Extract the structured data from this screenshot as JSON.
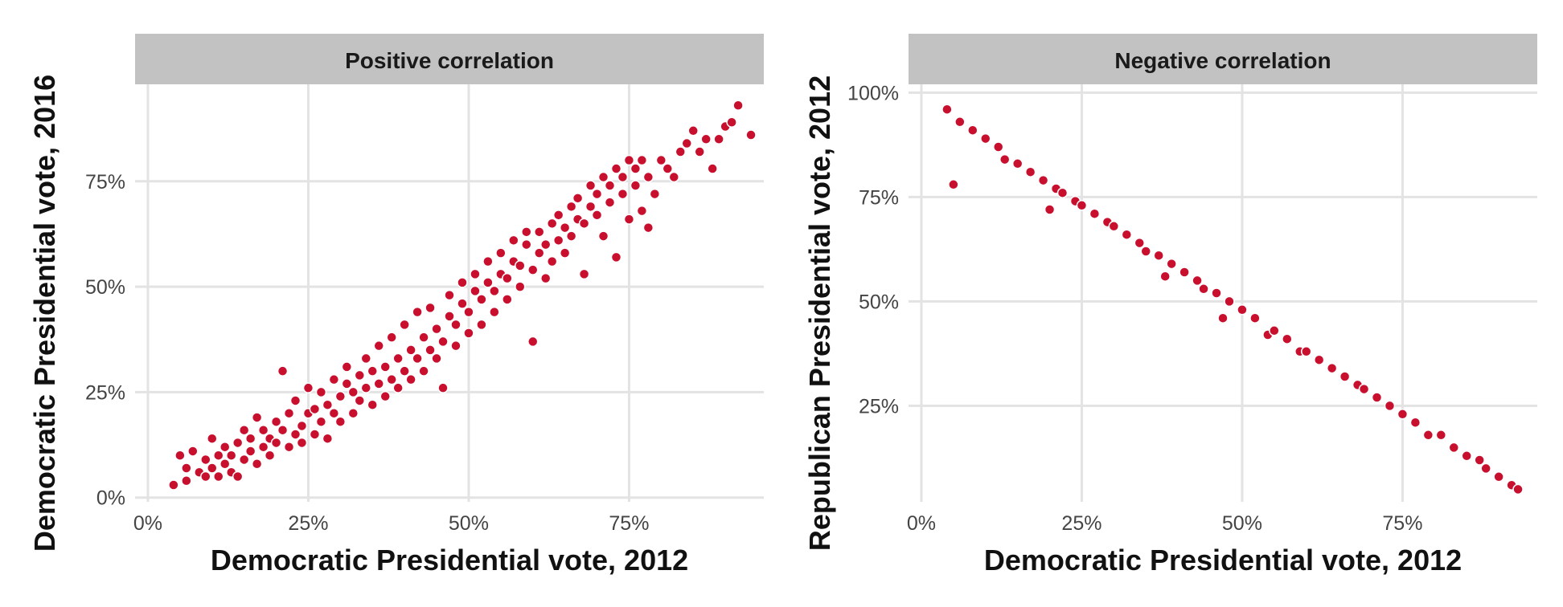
{
  "chart_data": [
    {
      "type": "scatter",
      "title": "Positive correlation",
      "xlabel": "Democratic Presidential vote, 2012",
      "ylabel": "Democratic Presidential vote, 2016",
      "xlim": [
        -0.02,
        0.96
      ],
      "ylim": [
        -0.01,
        0.98
      ],
      "x_ticks": [
        0,
        0.25,
        0.5,
        0.75
      ],
      "x_tick_labels": [
        "0%",
        "25%",
        "50%",
        "75%"
      ],
      "y_ticks": [
        0,
        0.25,
        0.5,
        0.75
      ],
      "y_tick_labels": [
        "0%",
        "25%",
        "50%",
        "75%"
      ],
      "grid": true,
      "point_color": "#c8102e",
      "points": [
        [
          0.04,
          0.03
        ],
        [
          0.05,
          0.1
        ],
        [
          0.06,
          0.04
        ],
        [
          0.06,
          0.07
        ],
        [
          0.07,
          0.11
        ],
        [
          0.08,
          0.06
        ],
        [
          0.09,
          0.05
        ],
        [
          0.09,
          0.09
        ],
        [
          0.1,
          0.07
        ],
        [
          0.1,
          0.14
        ],
        [
          0.11,
          0.05
        ],
        [
          0.11,
          0.1
        ],
        [
          0.12,
          0.08
        ],
        [
          0.12,
          0.12
        ],
        [
          0.13,
          0.06
        ],
        [
          0.13,
          0.1
        ],
        [
          0.14,
          0.13
        ],
        [
          0.14,
          0.05
        ],
        [
          0.15,
          0.09
        ],
        [
          0.15,
          0.16
        ],
        [
          0.16,
          0.11
        ],
        [
          0.16,
          0.14
        ],
        [
          0.17,
          0.08
        ],
        [
          0.17,
          0.19
        ],
        [
          0.18,
          0.12
        ],
        [
          0.18,
          0.16
        ],
        [
          0.19,
          0.1
        ],
        [
          0.19,
          0.14
        ],
        [
          0.2,
          0.18
        ],
        [
          0.2,
          0.13
        ],
        [
          0.21,
          0.3
        ],
        [
          0.21,
          0.16
        ],
        [
          0.22,
          0.12
        ],
        [
          0.22,
          0.2
        ],
        [
          0.23,
          0.15
        ],
        [
          0.23,
          0.23
        ],
        [
          0.24,
          0.17
        ],
        [
          0.24,
          0.13
        ],
        [
          0.25,
          0.2
        ],
        [
          0.25,
          0.26
        ],
        [
          0.26,
          0.15
        ],
        [
          0.26,
          0.21
        ],
        [
          0.27,
          0.18
        ],
        [
          0.27,
          0.25
        ],
        [
          0.28,
          0.22
        ],
        [
          0.28,
          0.14
        ],
        [
          0.29,
          0.2
        ],
        [
          0.29,
          0.28
        ],
        [
          0.3,
          0.24
        ],
        [
          0.3,
          0.18
        ],
        [
          0.31,
          0.27
        ],
        [
          0.31,
          0.31
        ],
        [
          0.32,
          0.2
        ],
        [
          0.32,
          0.25
        ],
        [
          0.33,
          0.29
        ],
        [
          0.33,
          0.23
        ],
        [
          0.34,
          0.33
        ],
        [
          0.34,
          0.26
        ],
        [
          0.35,
          0.22
        ],
        [
          0.35,
          0.3
        ],
        [
          0.36,
          0.27
        ],
        [
          0.36,
          0.36
        ],
        [
          0.37,
          0.24
        ],
        [
          0.37,
          0.31
        ],
        [
          0.38,
          0.28
        ],
        [
          0.38,
          0.38
        ],
        [
          0.39,
          0.33
        ],
        [
          0.39,
          0.26
        ],
        [
          0.4,
          0.3
        ],
        [
          0.4,
          0.41
        ],
        [
          0.41,
          0.35
        ],
        [
          0.41,
          0.28
        ],
        [
          0.42,
          0.33
        ],
        [
          0.42,
          0.44
        ],
        [
          0.43,
          0.38
        ],
        [
          0.43,
          0.3
        ],
        [
          0.44,
          0.35
        ],
        [
          0.44,
          0.45
        ],
        [
          0.45,
          0.4
        ],
        [
          0.45,
          0.33
        ],
        [
          0.46,
          0.26
        ],
        [
          0.46,
          0.37
        ],
        [
          0.47,
          0.43
        ],
        [
          0.47,
          0.48
        ],
        [
          0.48,
          0.36
        ],
        [
          0.48,
          0.41
        ],
        [
          0.49,
          0.46
        ],
        [
          0.49,
          0.51
        ],
        [
          0.5,
          0.39
        ],
        [
          0.5,
          0.44
        ],
        [
          0.51,
          0.49
        ],
        [
          0.51,
          0.53
        ],
        [
          0.52,
          0.41
        ],
        [
          0.52,
          0.47
        ],
        [
          0.53,
          0.51
        ],
        [
          0.53,
          0.56
        ],
        [
          0.54,
          0.44
        ],
        [
          0.54,
          0.49
        ],
        [
          0.55,
          0.53
        ],
        [
          0.55,
          0.58
        ],
        [
          0.56,
          0.47
        ],
        [
          0.56,
          0.52
        ],
        [
          0.57,
          0.56
        ],
        [
          0.57,
          0.61
        ],
        [
          0.58,
          0.5
        ],
        [
          0.58,
          0.55
        ],
        [
          0.59,
          0.6
        ],
        [
          0.59,
          0.63
        ],
        [
          0.6,
          0.37
        ],
        [
          0.6,
          0.54
        ],
        [
          0.61,
          0.58
        ],
        [
          0.61,
          0.63
        ],
        [
          0.62,
          0.52
        ],
        [
          0.62,
          0.6
        ],
        [
          0.63,
          0.65
        ],
        [
          0.63,
          0.56
        ],
        [
          0.64,
          0.61
        ],
        [
          0.64,
          0.67
        ],
        [
          0.65,
          0.58
        ],
        [
          0.65,
          0.64
        ],
        [
          0.66,
          0.69
        ],
        [
          0.66,
          0.62
        ],
        [
          0.67,
          0.66
        ],
        [
          0.67,
          0.71
        ],
        [
          0.68,
          0.53
        ],
        [
          0.68,
          0.65
        ],
        [
          0.69,
          0.69
        ],
        [
          0.69,
          0.74
        ],
        [
          0.7,
          0.67
        ],
        [
          0.7,
          0.72
        ],
        [
          0.71,
          0.76
        ],
        [
          0.71,
          0.62
        ],
        [
          0.72,
          0.7
        ],
        [
          0.72,
          0.74
        ],
        [
          0.73,
          0.78
        ],
        [
          0.73,
          0.57
        ],
        [
          0.74,
          0.72
        ],
        [
          0.74,
          0.76
        ],
        [
          0.75,
          0.8
        ],
        [
          0.75,
          0.66
        ],
        [
          0.76,
          0.74
        ],
        [
          0.76,
          0.78
        ],
        [
          0.77,
          0.68
        ],
        [
          0.77,
          0.8
        ],
        [
          0.78,
          0.76
        ],
        [
          0.78,
          0.64
        ],
        [
          0.79,
          0.72
        ],
        [
          0.8,
          0.8
        ],
        [
          0.81,
          0.78
        ],
        [
          0.82,
          0.76
        ],
        [
          0.83,
          0.82
        ],
        [
          0.84,
          0.84
        ],
        [
          0.85,
          0.87
        ],
        [
          0.86,
          0.82
        ],
        [
          0.87,
          0.85
        ],
        [
          0.88,
          0.78
        ],
        [
          0.89,
          0.85
        ],
        [
          0.9,
          0.88
        ],
        [
          0.91,
          0.89
        ],
        [
          0.92,
          0.93
        ],
        [
          0.94,
          0.86
        ]
      ]
    },
    {
      "type": "scatter",
      "title": "Negative correlation",
      "xlabel": "Democratic Presidential vote, 2012",
      "ylabel": "Republican Presidential vote, 2012",
      "xlim": [
        -0.02,
        0.96
      ],
      "ylim": [
        0.02,
        1.02
      ],
      "x_ticks": [
        0,
        0.25,
        0.5,
        0.75
      ],
      "x_tick_labels": [
        "0%",
        "25%",
        "50%",
        "75%"
      ],
      "y_ticks": [
        0.25,
        0.5,
        0.75,
        1.0
      ],
      "y_tick_labels": [
        "25%",
        "50%",
        "75%",
        "100%"
      ],
      "grid": true,
      "point_color": "#c8102e",
      "points": [
        [
          0.04,
          0.96
        ],
        [
          0.05,
          0.78
        ],
        [
          0.06,
          0.93
        ],
        [
          0.08,
          0.91
        ],
        [
          0.1,
          0.89
        ],
        [
          0.12,
          0.87
        ],
        [
          0.13,
          0.84
        ],
        [
          0.15,
          0.83
        ],
        [
          0.17,
          0.81
        ],
        [
          0.19,
          0.79
        ],
        [
          0.2,
          0.72
        ],
        [
          0.21,
          0.77
        ],
        [
          0.22,
          0.76
        ],
        [
          0.24,
          0.74
        ],
        [
          0.25,
          0.73
        ],
        [
          0.27,
          0.71
        ],
        [
          0.29,
          0.69
        ],
        [
          0.3,
          0.68
        ],
        [
          0.32,
          0.66
        ],
        [
          0.34,
          0.64
        ],
        [
          0.35,
          0.62
        ],
        [
          0.37,
          0.61
        ],
        [
          0.38,
          0.56
        ],
        [
          0.39,
          0.59
        ],
        [
          0.41,
          0.57
        ],
        [
          0.43,
          0.55
        ],
        [
          0.44,
          0.53
        ],
        [
          0.46,
          0.52
        ],
        [
          0.47,
          0.46
        ],
        [
          0.48,
          0.5
        ],
        [
          0.5,
          0.48
        ],
        [
          0.52,
          0.46
        ],
        [
          0.54,
          0.42
        ],
        [
          0.55,
          0.43
        ],
        [
          0.57,
          0.41
        ],
        [
          0.59,
          0.38
        ],
        [
          0.6,
          0.38
        ],
        [
          0.62,
          0.36
        ],
        [
          0.64,
          0.34
        ],
        [
          0.66,
          0.32
        ],
        [
          0.68,
          0.3
        ],
        [
          0.69,
          0.29
        ],
        [
          0.71,
          0.27
        ],
        [
          0.73,
          0.25
        ],
        [
          0.75,
          0.23
        ],
        [
          0.77,
          0.21
        ],
        [
          0.79,
          0.18
        ],
        [
          0.81,
          0.18
        ],
        [
          0.83,
          0.15
        ],
        [
          0.85,
          0.13
        ],
        [
          0.87,
          0.12
        ],
        [
          0.88,
          0.1
        ],
        [
          0.9,
          0.08
        ],
        [
          0.92,
          0.06
        ],
        [
          0.93,
          0.05
        ]
      ]
    }
  ]
}
